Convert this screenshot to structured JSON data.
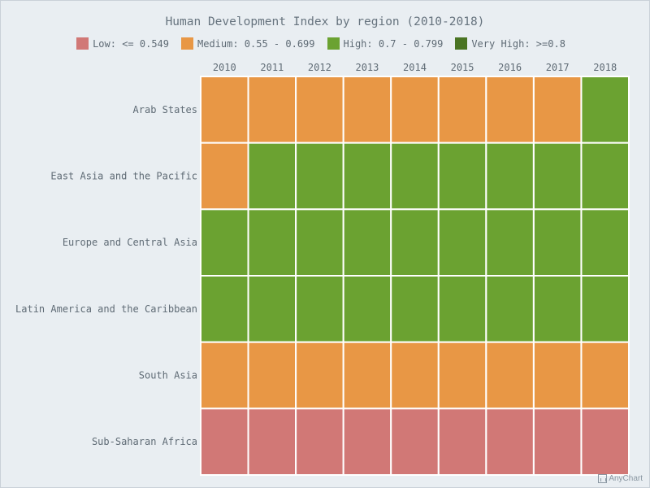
{
  "chart_data": {
    "type": "heatmap",
    "title": "Human Development Index by region (2010-2018)",
    "x": [
      "2010",
      "2011",
      "2012",
      "2013",
      "2014",
      "2015",
      "2016",
      "2017",
      "2018"
    ],
    "y": [
      "Arab States",
      "East Asia and the Pacific",
      "Europe and Central Asia",
      "Latin America and the Caribbean",
      "South Asia",
      "Sub-Saharan Africa"
    ],
    "categories": {
      "low": {
        "label": "Low: <= 0.549",
        "color": "#d17876"
      },
      "medium": {
        "label": "Medium: 0.55 - 0.699",
        "color": "#e89745"
      },
      "high": {
        "label": "High: 0.7 - 0.799",
        "color": "#6ba231"
      },
      "very_high": {
        "label": "Very High: >=0.8",
        "color": "#4a7423"
      }
    },
    "legend_order": [
      "low",
      "medium",
      "high",
      "very_high"
    ],
    "legend_position": "top-center",
    "x_axis_position": "top",
    "cells": [
      [
        "medium",
        "medium",
        "medium",
        "medium",
        "medium",
        "medium",
        "medium",
        "medium",
        "high"
      ],
      [
        "medium",
        "high",
        "high",
        "high",
        "high",
        "high",
        "high",
        "high",
        "high"
      ],
      [
        "high",
        "high",
        "high",
        "high",
        "high",
        "high",
        "high",
        "high",
        "high"
      ],
      [
        "high",
        "high",
        "high",
        "high",
        "high",
        "high",
        "high",
        "high",
        "high"
      ],
      [
        "medium",
        "medium",
        "medium",
        "medium",
        "medium",
        "medium",
        "medium",
        "medium",
        "medium"
      ],
      [
        "low",
        "low",
        "low",
        "low",
        "low",
        "low",
        "low",
        "low",
        "low"
      ]
    ]
  },
  "credits": {
    "text": "AnyChart"
  }
}
